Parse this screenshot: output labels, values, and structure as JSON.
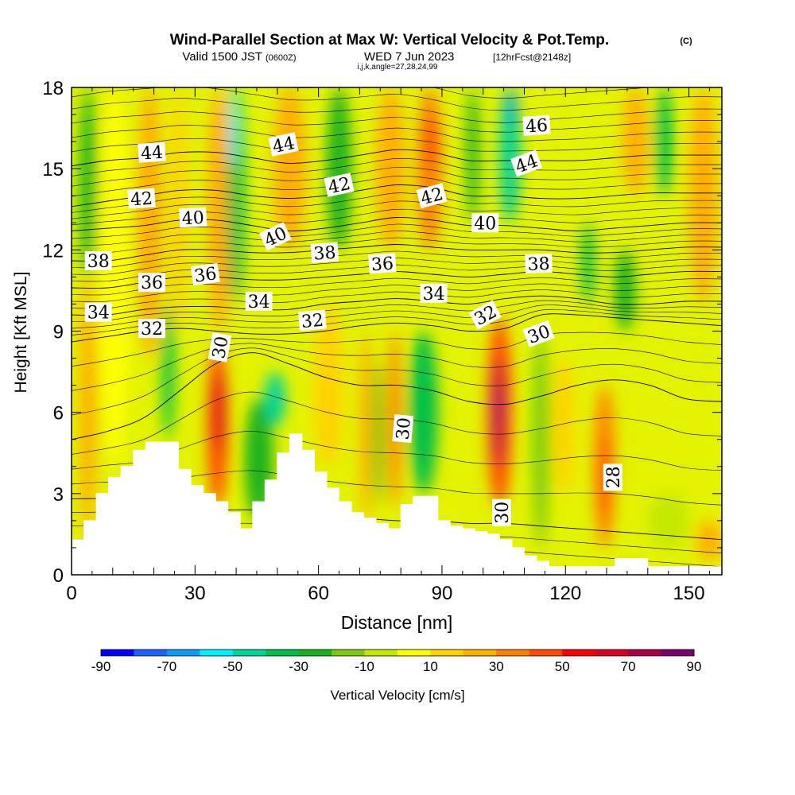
{
  "figure": {
    "title_main": "Wind-Parallel Section at Max W: Vertical Velocity & Pot.Temp.",
    "title_copy": "(C)",
    "subtitle_a": "Valid 1500 JST",
    "subtitle_b": "(0600Z)",
    "subtitle_c": "WED 7 Jun 2023",
    "subtitle_d": "[12hrFcst@2148z]",
    "subtitle_e": "i,j,k,angle=27,28,24,99",
    "xlabel": "Distance [nm]",
    "ylabel": "Height [Kft MSL]",
    "colorbar_label": "Vertical Velocity [cm/s]"
  },
  "chart_data": {
    "type": "heatmap",
    "x_range": [
      0,
      158
    ],
    "y_range": [
      0,
      18
    ],
    "x_ticks": [
      0,
      30,
      60,
      90,
      120,
      150
    ],
    "y_ticks": [
      0,
      3,
      6,
      9,
      12,
      15,
      18
    ],
    "colorbar": {
      "levels": [
        -90,
        -80,
        -70,
        -60,
        -50,
        -40,
        -30,
        -20,
        -10,
        0,
        10,
        20,
        30,
        40,
        50,
        60,
        70,
        80,
        90
      ],
      "tick_labels": [
        "-90",
        "-70",
        "-50",
        "-30",
        "-10",
        "10",
        "30",
        "50",
        "70",
        "90"
      ],
      "colors": [
        "#0000ff",
        "#1a62ff",
        "#0a9cf8",
        "#00f0ff",
        "#00d49a",
        "#00c04a",
        "#1ab21a",
        "#7acb10",
        "#c4e800",
        "#ffff00",
        "#ffd200",
        "#ffae00",
        "#ff8000",
        "#ff4a00",
        "#ff0000",
        "#d8001e",
        "#a80046",
        "#78006e"
      ]
    },
    "velocity_cells": [
      {
        "x0": 2,
        "x1": 6,
        "y0": 1.3,
        "y1": 11,
        "w": 20
      },
      {
        "x0": 2,
        "x1": 6,
        "y0": 11,
        "y1": 18,
        "w": -30
      },
      {
        "x0": 7,
        "x1": 14,
        "y0": 4,
        "y1": 18,
        "w": 5
      },
      {
        "x0": 16,
        "x1": 22,
        "y0": 8,
        "y1": 18,
        "w": 25
      },
      {
        "x0": 22,
        "x1": 25,
        "y0": 5,
        "y1": 10,
        "w": -35
      },
      {
        "x0": 24,
        "x1": 28,
        "y0": 9,
        "y1": 18,
        "w": 15
      },
      {
        "x0": 33,
        "x1": 38,
        "y0": 2.5,
        "y1": 8.5,
        "w": 45
      },
      {
        "x0": 34.5,
        "x1": 37,
        "y0": 4.5,
        "y1": 7.5,
        "w": 65
      },
      {
        "x0": 33,
        "x1": 39,
        "y0": 9,
        "y1": 18,
        "w": 25
      },
      {
        "x0": 38,
        "x1": 42,
        "y0": 10,
        "y1": 18,
        "w": -35
      },
      {
        "x0": 38.5,
        "x1": 40.5,
        "y0": 15,
        "y1": 18,
        "w": -55
      },
      {
        "x0": 42,
        "x1": 49,
        "y0": 2,
        "y1": 6.5,
        "w": -30
      },
      {
        "x0": 47,
        "x1": 52,
        "y0": 5.5,
        "y1": 7.5,
        "w": -45
      },
      {
        "x0": 49,
        "x1": 57,
        "y0": 12,
        "y1": 18,
        "w": 25
      },
      {
        "x0": 59,
        "x1": 66,
        "y0": 4,
        "y1": 10,
        "w": 12
      },
      {
        "x0": 62,
        "x1": 68,
        "y0": 12,
        "y1": 18,
        "w": -25
      },
      {
        "x0": 70,
        "x1": 73,
        "y0": 2,
        "y1": 9,
        "w": 25
      },
      {
        "x0": 73.5,
        "x1": 75.5,
        "y0": 2.5,
        "y1": 8,
        "w": -25
      },
      {
        "x0": 74,
        "x1": 81,
        "y0": 12,
        "y1": 18,
        "w": 20
      },
      {
        "x0": 77,
        "x1": 80,
        "y0": 2.5,
        "y1": 9,
        "w": 35
      },
      {
        "x0": 82,
        "x1": 89,
        "y0": 3,
        "y1": 9,
        "w": -35
      },
      {
        "x0": 84,
        "x1": 90,
        "y0": 12,
        "y1": 18,
        "w": 30
      },
      {
        "x0": 86,
        "x1": 89,
        "y0": 15,
        "y1": 17,
        "w": 45
      },
      {
        "x0": 96,
        "x1": 99,
        "y0": 13,
        "y1": 18,
        "w": -30
      },
      {
        "x0": 101,
        "x1": 107,
        "y0": 2.5,
        "y1": 9.5,
        "w": 45
      },
      {
        "x0": 102.5,
        "x1": 105,
        "y0": 4,
        "y1": 8,
        "w": 70
      },
      {
        "x0": 103,
        "x1": 104.5,
        "y0": 5.5,
        "y1": 7,
        "w": 85
      },
      {
        "x0": 104,
        "x1": 109,
        "y0": 13,
        "y1": 18,
        "w": -50
      },
      {
        "x0": 106,
        "x1": 108,
        "y0": 16.5,
        "y1": 18,
        "w": -70
      },
      {
        "x0": 112,
        "x1": 116,
        "y0": 1,
        "y1": 9,
        "w": -15
      },
      {
        "x0": 117,
        "x1": 122,
        "y0": 3,
        "y1": 8,
        "w": 10
      },
      {
        "x0": 124,
        "x1": 127,
        "y0": 10,
        "y1": 13,
        "w": -35
      },
      {
        "x0": 127,
        "x1": 132,
        "y0": 1,
        "y1": 7,
        "w": 30
      },
      {
        "x0": 128.5,
        "x1": 130.5,
        "y0": 2,
        "y1": 5,
        "w": 45
      },
      {
        "x0": 132,
        "x1": 137,
        "y0": 9,
        "y1": 12,
        "w": -25
      },
      {
        "x0": 134,
        "x1": 140,
        "y0": 14,
        "y1": 18,
        "w": 20
      },
      {
        "x0": 142,
        "x1": 146,
        "y0": 14,
        "y1": 18,
        "w": -35
      },
      {
        "x0": 150,
        "x1": 157,
        "y0": 10,
        "y1": 18,
        "w": 20
      },
      {
        "x0": 140,
        "x1": 150,
        "y0": 1,
        "y1": 3,
        "w": -10
      },
      {
        "x0": 152,
        "x1": 158,
        "y0": 0.5,
        "y1": 2,
        "w": 25
      }
    ],
    "terrain": {
      "x": [
        0,
        3,
        3,
        6,
        6,
        9,
        9,
        12,
        12,
        15,
        15,
        18,
        18,
        22,
        22,
        26,
        26,
        29,
        29,
        32,
        32,
        35,
        35,
        38,
        38,
        41,
        41,
        44,
        44,
        47,
        47,
        50,
        50,
        53,
        53,
        56,
        56,
        59,
        59,
        62,
        62,
        65,
        65,
        68,
        68,
        71,
        71,
        74,
        74,
        77,
        77,
        80,
        80,
        83,
        83,
        86,
        86,
        89,
        89,
        92,
        92,
        95,
        95,
        98,
        98,
        101,
        101,
        104,
        104,
        107,
        107,
        110,
        110,
        113,
        113,
        116,
        116,
        120,
        120,
        124,
        124,
        128,
        128,
        132,
        132,
        136,
        136,
        140,
        140,
        144,
        144,
        147,
        147,
        150,
        150,
        158
      ],
      "y": [
        1.3,
        1.3,
        2.0,
        2.0,
        3.0,
        3.0,
        3.6,
        3.6,
        4.0,
        4.0,
        4.6,
        4.6,
        4.9,
        4.9,
        4.9,
        4.9,
        3.9,
        3.9,
        3.3,
        3.3,
        3.0,
        3.0,
        2.7,
        2.7,
        2.3,
        2.3,
        1.7,
        1.7,
        2.7,
        2.7,
        3.5,
        3.5,
        4.5,
        4.5,
        5.2,
        5.2,
        4.6,
        4.6,
        3.8,
        3.8,
        3.2,
        3.2,
        2.7,
        2.7,
        2.3,
        2.3,
        2.1,
        2.1,
        1.9,
        1.9,
        1.7,
        1.7,
        2.6,
        2.6,
        2.9,
        2.9,
        2.9,
        2.9,
        2.0,
        2.0,
        1.8,
        1.8,
        1.7,
        1.7,
        1.6,
        1.6,
        1.5,
        1.5,
        1.3,
        1.3,
        1.0,
        1.0,
        0.7,
        0.7,
        0.5,
        0.5,
        0.3,
        0.3,
        0.3,
        0.3,
        0.3,
        0.3,
        0.3,
        0.3,
        0.6,
        0.6,
        0.6,
        0.6,
        0.3,
        0.3,
        0.3,
        0.3,
        0.3,
        0.3,
        0.3,
        0.3
      ]
    },
    "theta_base": [
      {
        "level": 28,
        "y": [
          2.8,
          2.8,
          2.6,
          2.5,
          2.4,
          2.4,
          2.3,
          2.2,
          2.1,
          2.0,
          2.0,
          1.9,
          1.9,
          1.8,
          1.7,
          1.6,
          1.5,
          1.4,
          1.3
        ]
      },
      {
        "level": 30,
        "y": [
          5.0,
          5.3,
          5.8,
          6.8,
          7.8,
          8.2,
          7.8,
          7.3,
          7.0,
          7.0,
          6.8,
          6.4,
          6.3,
          6.6,
          7.0,
          7.2,
          7.0,
          6.5,
          6.4
        ]
      },
      {
        "level": 32,
        "y": [
          8.6,
          8.8,
          9.0,
          9.1,
          9.0,
          8.9,
          8.9,
          9.0,
          9.2,
          9.3,
          9.2,
          9.0,
          9.1,
          9.6,
          9.6,
          9.5,
          9.4,
          9.3,
          9.2
        ]
      },
      {
        "level": 34,
        "y": [
          9.6,
          9.6,
          9.8,
          9.9,
          9.9,
          9.8,
          9.8,
          10.0,
          10.1,
          10.2,
          10.1,
          10.0,
          10.2,
          10.3,
          10.2,
          10.0,
          10.0,
          10.1,
          10.1
        ]
      },
      {
        "level": 36,
        "y": [
          10.6,
          10.6,
          10.8,
          11.0,
          11.0,
          10.9,
          10.9,
          11.0,
          11.1,
          11.2,
          11.1,
          11.0,
          11.1,
          11.2,
          11.1,
          11.0,
          11.1,
          11.2,
          11.2
        ]
      },
      {
        "level": 38,
        "y": [
          11.6,
          11.6,
          11.8,
          12.0,
          12.0,
          11.9,
          11.9,
          12.0,
          12.1,
          12.2,
          12.1,
          12.0,
          12.0,
          12.0,
          11.9,
          11.9,
          12.0,
          12.1,
          12.1
        ]
      },
      {
        "level": 40,
        "y": [
          12.7,
          12.8,
          12.9,
          13.1,
          13.1,
          12.9,
          12.7,
          12.8,
          13.0,
          13.2,
          13.1,
          12.9,
          12.9,
          12.8,
          12.7,
          12.8,
          12.9,
          13.0,
          13.0
        ]
      },
      {
        "level": 42,
        "y": [
          13.6,
          13.8,
          14.0,
          14.2,
          14.2,
          14.0,
          13.9,
          14.0,
          14.2,
          14.4,
          14.3,
          14.0,
          14.0,
          13.9,
          13.9,
          14.0,
          14.1,
          14.1,
          14.1
        ]
      },
      {
        "level": 44,
        "y": [
          15.1,
          15.3,
          15.4,
          15.6,
          15.6,
          15.4,
          15.2,
          15.3,
          15.5,
          15.7,
          15.6,
          15.3,
          15.3,
          15.3,
          15.3,
          15.4,
          15.5,
          15.5,
          15.5
        ]
      },
      {
        "level": 46,
        "y": [
          17.2,
          17.4,
          17.5,
          17.6,
          17.5,
          17.3,
          17.1,
          17.1,
          17.2,
          17.3,
          17.1,
          16.8,
          16.7,
          16.8,
          16.9,
          17.0,
          17.1,
          17.2,
          17.2
        ]
      }
    ],
    "contour_labels": [
      {
        "text": "44",
        "x": 19.5,
        "y": 15.6,
        "angle": -4
      },
      {
        "text": "42",
        "x": 17,
        "y": 13.9,
        "angle": -4
      },
      {
        "text": "40",
        "x": 29.5,
        "y": 13.2,
        "angle": -3
      },
      {
        "text": "38",
        "x": 6.5,
        "y": 11.6,
        "angle": 0
      },
      {
        "text": "36",
        "x": 19.5,
        "y": 10.8,
        "angle": 0
      },
      {
        "text": "36",
        "x": 32.5,
        "y": 11.1,
        "angle": -8
      },
      {
        "text": "34",
        "x": 6.5,
        "y": 9.7,
        "angle": 0
      },
      {
        "text": "34",
        "x": 45.5,
        "y": 10.1,
        "angle": 0
      },
      {
        "text": "32",
        "x": 19.5,
        "y": 9.1,
        "angle": 0
      },
      {
        "text": "30",
        "x": 36,
        "y": 8.4,
        "angle": -80
      },
      {
        "text": "44",
        "x": 51.5,
        "y": 15.9,
        "angle": -12
      },
      {
        "text": "40",
        "x": 49.5,
        "y": 12.5,
        "angle": -25
      },
      {
        "text": "38",
        "x": 61.5,
        "y": 11.9,
        "angle": -4
      },
      {
        "text": "42",
        "x": 65,
        "y": 14.4,
        "angle": -12
      },
      {
        "text": "32",
        "x": 58.5,
        "y": 9.4,
        "angle": -5
      },
      {
        "text": "36",
        "x": 75.5,
        "y": 11.5,
        "angle": -4
      },
      {
        "text": "30",
        "x": 80.5,
        "y": 5.4,
        "angle": -85
      },
      {
        "text": "42",
        "x": 87.5,
        "y": 14.0,
        "angle": -15
      },
      {
        "text": "34",
        "x": 88,
        "y": 10.4,
        "angle": 0
      },
      {
        "text": "40",
        "x": 100.5,
        "y": 13.0,
        "angle": 0
      },
      {
        "text": "32",
        "x": 100.5,
        "y": 9.6,
        "angle": -28
      },
      {
        "text": "30",
        "x": 104.5,
        "y": 2.3,
        "angle": -90
      },
      {
        "text": "46",
        "x": 113,
        "y": 16.6,
        "angle": -4
      },
      {
        "text": "44",
        "x": 110.5,
        "y": 15.2,
        "angle": -20
      },
      {
        "text": "38",
        "x": 113.5,
        "y": 11.5,
        "angle": -2
      },
      {
        "text": "30",
        "x": 113.5,
        "y": 8.9,
        "angle": -20
      },
      {
        "text": "28",
        "x": 131.5,
        "y": 3.6,
        "angle": -90
      }
    ]
  }
}
